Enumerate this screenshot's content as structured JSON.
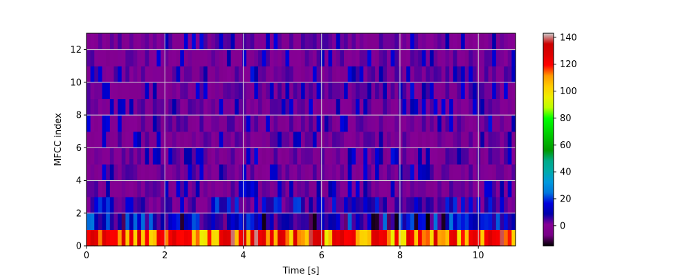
{
  "chart_data": {
    "type": "heatmap",
    "title": "",
    "xlabel": "Time [s]",
    "ylabel": "MFCC index",
    "xlim": [
      0,
      10.95
    ],
    "ylim": [
      0,
      13
    ],
    "x_ticks": [
      0,
      2,
      4,
      6,
      8,
      10
    ],
    "y_ticks": [
      0,
      2,
      4,
      6,
      8,
      10,
      12
    ],
    "grid": true,
    "n_coefficients": 13,
    "n_frames": 110,
    "colormap": "nipy_spectral",
    "colorbar": {
      "vmin": -15,
      "vmax": 143,
      "ticks": [
        0,
        20,
        40,
        60,
        80,
        100,
        120,
        140
      ]
    },
    "value_ranges": {
      "row0": [
        95,
        143
      ],
      "row1": [
        -15,
        25
      ],
      "row2": [
        0,
        22
      ],
      "rows3_12": [
        -3,
        18
      ]
    }
  }
}
